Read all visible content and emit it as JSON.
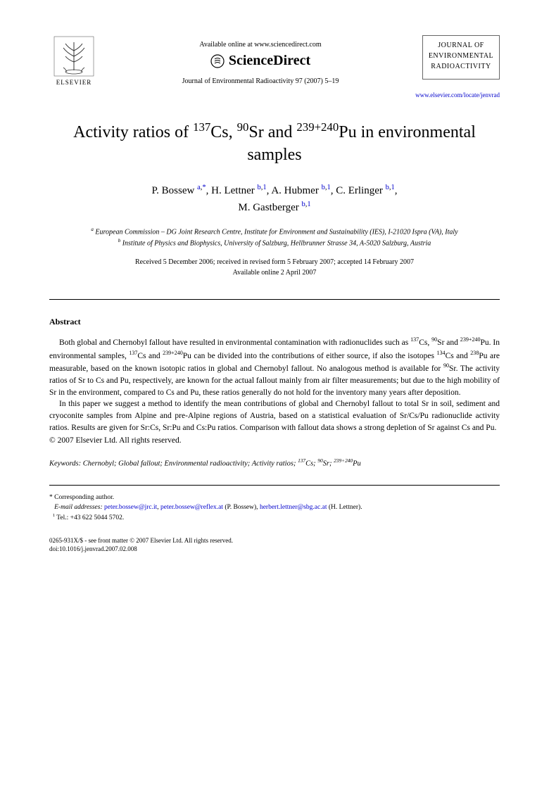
{
  "header": {
    "available_text": "Available online at www.sciencedirect.com",
    "sciencedirect_label": "ScienceDirect",
    "journal_reference": "Journal of Environmental Radioactivity 97 (2007) 5–19",
    "elsevier_label": "ELSEVIER",
    "journal_box_line1": "JOURNAL OF",
    "journal_box_line2": "ENVIRONMENTAL",
    "journal_box_line3": "RADIOACTIVITY",
    "journal_link": "www.elsevier.com/locate/jenvrad"
  },
  "title_html": "Activity ratios of <sup>137</sup>Cs, <sup>90</sup>Sr and <sup>239+240</sup>Pu in environmental samples",
  "authors_html": "P. Bossew <sup><a href='#'>a</a>,<a href='#'>*</a></sup>, H. Lettner <sup><a href='#'>b</a>,<a href='#'>1</a></sup>, A. Hubmer <sup><a href='#'>b</a>,<a href='#'>1</a></sup>, C. Erlinger <sup><a href='#'>b</a>,<a href='#'>1</a></sup>,<br>M. Gastberger <sup><a href='#'>b</a>,<a href='#'>1</a></sup>",
  "affiliations": {
    "a": "European Commission – DG Joint Research Centre, Institute for Environment and Sustainability (IES), I-21020 Ispra (VA), Italy",
    "b": "Institute of Physics and Biophysics, University of Salzburg, Hellbrunner Strasse 34, A-5020 Salzburg, Austria"
  },
  "dates": {
    "line1": "Received 5 December 2006; received in revised form 5 February 2007; accepted 14 February 2007",
    "line2": "Available online 2 April 2007"
  },
  "abstract": {
    "heading": "Abstract",
    "p1_html": "Both global and Chernobyl fallout have resulted in environmental contamination with radionuclides such as <sup>137</sup>Cs, <sup>90</sup>Sr and <sup>239+240</sup>Pu. In environmental samples, <sup>137</sup>Cs and <sup>239+240</sup>Pu can be divided into the contributions of either source, if also the isotopes <sup>134</sup>Cs and <sup>238</sup>Pu are measurable, based on the known isotopic ratios in global and Chernobyl fallout. No analogous method is available for <sup>90</sup>Sr. The activity ratios of Sr to Cs and Pu, respectively, are known for the actual fallout mainly from air filter measurements; but due to the high mobility of Sr in the environment, compared to Cs and Pu, these ratios generally do not hold for the inventory many years after deposition.",
    "p2_html": "In this paper we suggest a method to identify the mean contributions of global and Chernobyl fallout to total Sr in soil, sediment and cryoconite samples from Alpine and pre-Alpine regions of Austria, based on a statistical evaluation of Sr/Cs/Pu radionuclide activity ratios. Results are given for Sr:Cs, Sr:Pu and Cs:Pu ratios. Comparison with fallout data shows a strong depletion of Sr against Cs and Pu.",
    "copyright": "© 2007 Elsevier Ltd. All rights reserved."
  },
  "keywords_html": "<span class='kw-label'>Keywords:</span> Chernobyl; Global fallout; Environmental radioactivity; Activity ratios; <sup>137</sup>Cs; <sup>90</sup>Sr; <sup>239+240</sup>Pu",
  "footnotes": {
    "corresponding": "* Corresponding author.",
    "emails_label": "E-mail addresses:",
    "email1": "peter.bossew@jrc.it",
    "email2": "peter.bossew@reflex.at",
    "email1_name": "(P. Bossew),",
    "email3": "herbert.lettner@sbg.ac.at",
    "email3_name": "(H. Lettner).",
    "tel": "Tel.: +43 622 5044 5702."
  },
  "footer": {
    "line1": "0265-931X/$ - see front matter © 2007 Elsevier Ltd. All rights reserved.",
    "line2": "doi:10.1016/j.jenvrad.2007.02.008"
  },
  "colors": {
    "link": "#0000cc",
    "text": "#000000",
    "background": "#ffffff",
    "border": "#666666"
  }
}
